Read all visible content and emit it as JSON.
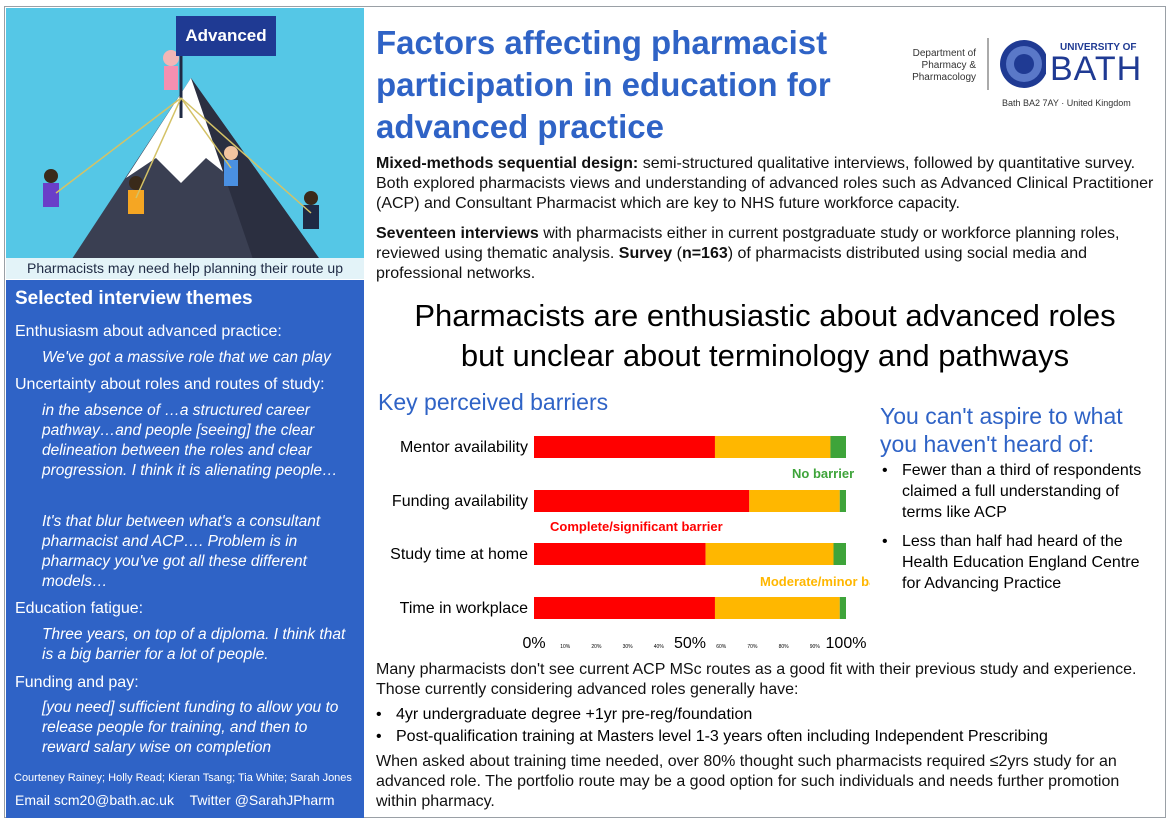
{
  "hero": {
    "flag": "Advanced",
    "caption": "Pharmacists may need help planning their route up"
  },
  "sidebar": {
    "heading": "Selected interview themes",
    "themes": [
      {
        "title": "Enthusiasm about advanced practice:",
        "quotes": [
          "We've got a massive role that we can play"
        ]
      },
      {
        "title": "Uncertainty about roles and routes of study:",
        "quotes": [
          "in the absence of …a structured career pathway…and people [seeing] the clear delineation between the roles and clear progression. I think it is alienating people…",
          "It's that blur between what's a consultant pharmacist and ACP…. Problem is in pharmacy you've got all these different models…"
        ]
      },
      {
        "title": "Education fatigue:",
        "quotes": [
          "Three years, on top of a diploma. I think that is a big barrier for a lot of people."
        ]
      },
      {
        "title": "Funding and pay:",
        "quotes": [
          "[you need] sufficient funding to allow you to release people for training, and then to reward salary wise on completion"
        ]
      }
    ],
    "authors": "Courteney Rainey; Holly Read; Kieran Tsang; Tia White; Sarah Jones",
    "email": "Email scm20@bath.ac.uk",
    "twitter": "Twitter @SarahJPharm"
  },
  "title": "Factors affecting pharmacist participation in education for advanced practice",
  "logo": {
    "dept_line1": "Department of",
    "dept_line2": "Pharmacy &",
    "dept_line3": "Pharmacology",
    "university": "UNIVERSITY OF",
    "bath": "BATH",
    "address": "Bath BA2 7AY · United Kingdom"
  },
  "methods": {
    "p1_bold": "Mixed-methods sequential design:",
    "p1_text": " semi-structured qualitative interviews, followed by quantitative survey. Both explored pharmacists views and understanding of advanced roles such as Advanced Clinical Practitioner (ACP) and Consultant Pharmacist which are key to NHS future workforce capacity.",
    "p2_bold": "Seventeen interviews",
    "p2_text": " with pharmacists either in current postgraduate study or workforce planning roles, reviewed using thematic analysis. ",
    "p2_bold2": "Survey",
    "p2_text2": " (",
    "p2_bold3": "n=163",
    "p2_text3": ") of pharmacists distributed using social media and professional networks."
  },
  "headline_1": "Pharmacists are enthusiastic about advanced roles",
  "headline_2": "but unclear about terminology and pathways",
  "barriers_heading": "Key perceived barriers",
  "chart_data": {
    "type": "bar",
    "orientation": "horizontal",
    "stacked": true,
    "categories": [
      "Mentor availability",
      "Funding availability",
      "Study time at home",
      "Time in workplace"
    ],
    "series": [
      {
        "name": "Complete/significant barrier",
        "color": "#ff0000",
        "values": [
          58,
          69,
          55,
          58
        ]
      },
      {
        "name": "Moderate/minor barrier",
        "color": "#ffb700",
        "values": [
          37,
          29,
          41,
          40
        ]
      },
      {
        "name": "No barrier",
        "color": "#3ea43a",
        "values": [
          5,
          2,
          4,
          2
        ]
      }
    ],
    "xlim": [
      0,
      100
    ],
    "tick_labels": [
      "0%",
      "10%",
      "20%",
      "30%",
      "40%",
      "50%",
      "60%",
      "70%",
      "80%",
      "90%",
      "100%"
    ],
    "legend": "inline"
  },
  "aspire": {
    "heading_1": "You can't aspire to what",
    "heading_2": "you haven't heard of:",
    "bullets": [
      "Fewer than a third of respondents claimed a full understanding of terms like ACP",
      "Less than half had heard of the Health Education England Centre for Advancing Practice"
    ]
  },
  "conclusion": {
    "intro": "Many pharmacists don't see current ACP MSc routes as a good fit with their previous study and experience. Those currently considering advanced roles generally have:",
    "bullets": [
      "4yr undergraduate degree +1yr pre-reg/foundation",
      "Post-qualification training at Masters level 1-3 years often including Independent Prescribing"
    ],
    "final": "When asked about training time needed, over 80% thought such pharmacists required ≤2yrs study for an advanced role. The portfolio route may be a good option for such individuals and needs further promotion within pharmacy."
  },
  "colors": {
    "accent": "#2f63c6",
    "sky": "#55c7e6",
    "red": "#ff0000",
    "amber": "#ffb700",
    "green": "#3ea43a"
  }
}
